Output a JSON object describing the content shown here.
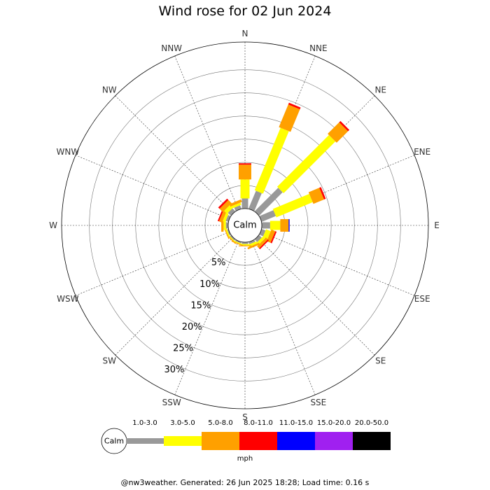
{
  "chart_data": {
    "type": "windrose",
    "title": "Wind rose for 02 Jun 2024",
    "directions": [
      "N",
      "NNE",
      "NE",
      "ENE",
      "E",
      "ESE",
      "SE",
      "SSE",
      "S",
      "SSW",
      "SW",
      "WSW",
      "W",
      "WNW",
      "NW",
      "NNW"
    ],
    "radial_ticks": [
      "5%",
      "10%",
      "15%",
      "20%",
      "25%",
      "30%"
    ],
    "rmax_percent": 36,
    "calm_label": "Calm",
    "unit": "mph",
    "bins": [
      {
        "label": "1.0-3.0",
        "color": "#999999"
      },
      {
        "label": "3.0-5.0",
        "color": "#ffff00"
      },
      {
        "label": "5.0-8.0",
        "color": "#ffa000"
      },
      {
        "label": "8.0-11.0",
        "color": "#ff0000"
      },
      {
        "label": "11.0-15.0",
        "color": "#0000ff"
      },
      {
        "label": "15.0-20.0",
        "color": "#a020f0"
      },
      {
        "label": "20.0-50.0",
        "color": "#000000"
      }
    ],
    "values": {
      "N": [
        2.2,
        4.1,
        3.2,
        0.3,
        0,
        0,
        0
      ],
      "NNE": [
        4.2,
        14.6,
        5.3,
        0.4,
        0,
        0,
        0
      ],
      "NE": [
        7.2,
        15.8,
        3.5,
        0.4,
        0,
        0,
        0
      ],
      "ENE": [
        3.3,
        8.5,
        2.5,
        0.4,
        0,
        0,
        0
      ],
      "E": [
        1.8,
        2.2,
        1.8,
        0,
        0.2,
        0,
        0
      ],
      "ESE": [
        0.9,
        1.1,
        0.9,
        0.3,
        0,
        0,
        0
      ],
      "SE": [
        0.8,
        0.6,
        0.6,
        0.3,
        0,
        0,
        0
      ],
      "SSE": [
        0.5,
        0.5,
        0.4,
        0,
        0,
        0,
        0
      ],
      "S": [
        0.4,
        0.3,
        0.2,
        0,
        0,
        0,
        0
      ],
      "SSW": [
        0.3,
        0.2,
        0.2,
        0,
        0,
        0,
        0
      ],
      "SW": [
        0.3,
        0.2,
        0.2,
        0,
        0,
        0,
        0
      ],
      "WSW": [
        0.3,
        0.3,
        0.2,
        0,
        0,
        0,
        0
      ],
      "W": [
        0.5,
        0.5,
        0.5,
        0,
        0,
        0,
        0
      ],
      "WNW": [
        0.6,
        0.6,
        0.7,
        0.3,
        0,
        0,
        0
      ],
      "NW": [
        0.9,
        0.9,
        1.0,
        0.4,
        0,
        0,
        0
      ],
      "NNW": [
        0.8,
        0.5,
        0.6,
        0,
        0,
        0,
        0
      ]
    }
  },
  "footer": "@nw3weather. Generated: 26 Jun 2025 18:28; Load time: 0.16 s"
}
